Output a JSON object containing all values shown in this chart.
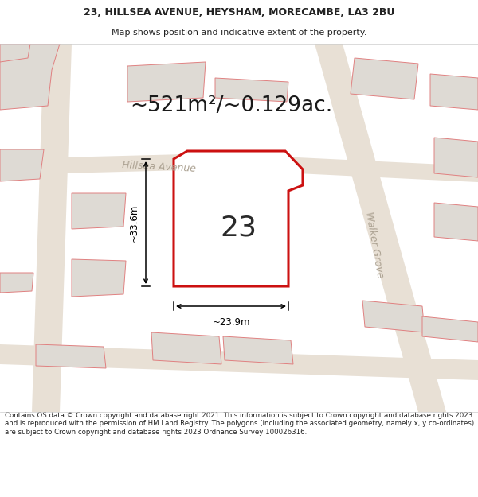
{
  "title_line1": "23, HILLSEA AVENUE, HEYSHAM, MORECAMBE, LA3 2BU",
  "title_line2": "Map shows position and indicative extent of the property.",
  "area_text": "~521m²/~0.129ac.",
  "plot_number": "23",
  "dim_width": "~23.9m",
  "dim_height": "~33.6m",
  "street_hillsea": "Hillsea Avenue",
  "street_walker": "Walker Grove",
  "footer_text": "Contains OS data © Crown copyright and database right 2021. This information is subject to Crown copyright and database rights 2023 and is reproduced with the permission of HM Land Registry. The polygons (including the associated geometry, namely x, y co-ordinates) are subject to Crown copyright and database rights 2023 Ordnance Survey 100026316.",
  "map_bg": "#f0ece6",
  "plot_fill": "#ffffff",
  "plot_edge": "#cc1111",
  "bldg_fill": "#dedad4",
  "bldg_edge": "#e08080",
  "road_fill": "#e8e0d5",
  "text_color": "#222222",
  "street_color": "#aaa090",
  "page_bg": "#ffffff",
  "title_fontsize": 9.0,
  "subtitle_fontsize": 8.0,
  "area_fontsize": 19,
  "num_fontsize": 26,
  "dim_fontsize": 8.5,
  "street_fontsize": 9.0,
  "footer_fontsize": 6.2
}
